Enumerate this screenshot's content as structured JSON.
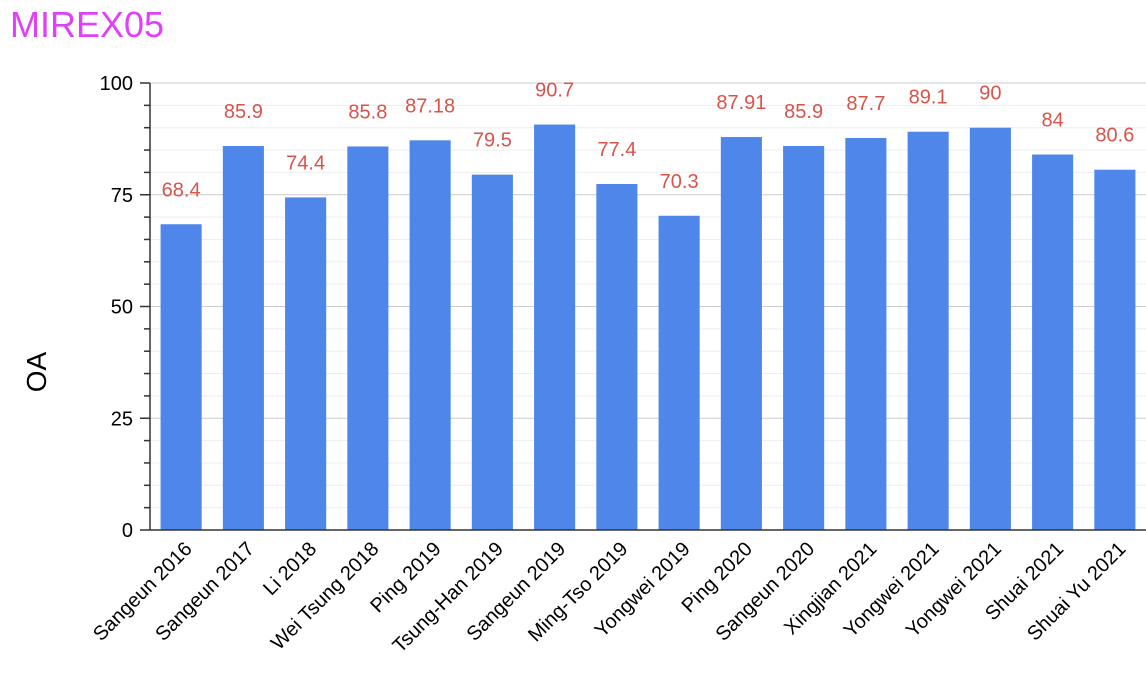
{
  "chart_data": {
    "type": "bar",
    "title": "MIREX05",
    "xlabel": "",
    "ylabel": "OA",
    "ylim": [
      0,
      100
    ],
    "yticks": [
      0,
      25,
      50,
      75,
      100
    ],
    "grid": true,
    "categories": [
      "Sangeun 2016",
      "Sangeun 2017",
      "Li 2018",
      "Wei Tsung 2018",
      "Ping 2019",
      "Tsung-Han 2019",
      "Sangeun 2019",
      "Ming-Tso 2019",
      "Yongwei 2019",
      "Ping 2020",
      "Sangeun 2020",
      "Xingjian 2021",
      "Yongwei 2021",
      "Yongwei 2021",
      "Shuai 2021",
      "Shuai Yu 2021"
    ],
    "values": [
      68.4,
      85.9,
      74.4,
      85.8,
      87.18,
      79.5,
      90.7,
      77.4,
      70.3,
      87.91,
      85.9,
      87.7,
      89.1,
      90,
      84,
      80.6
    ],
    "data_labels": [
      "68.4",
      "85.9",
      "74.4",
      "85.8",
      "87.18",
      "79.5",
      "90.7",
      "77.4",
      "70.3",
      "87.91",
      "85.9",
      "87.7",
      "89.1",
      "90",
      "84",
      "80.6"
    ],
    "colors": {
      "bar": "#4f86ea",
      "data_label": "#d9534a",
      "title": "#e040fb"
    }
  }
}
